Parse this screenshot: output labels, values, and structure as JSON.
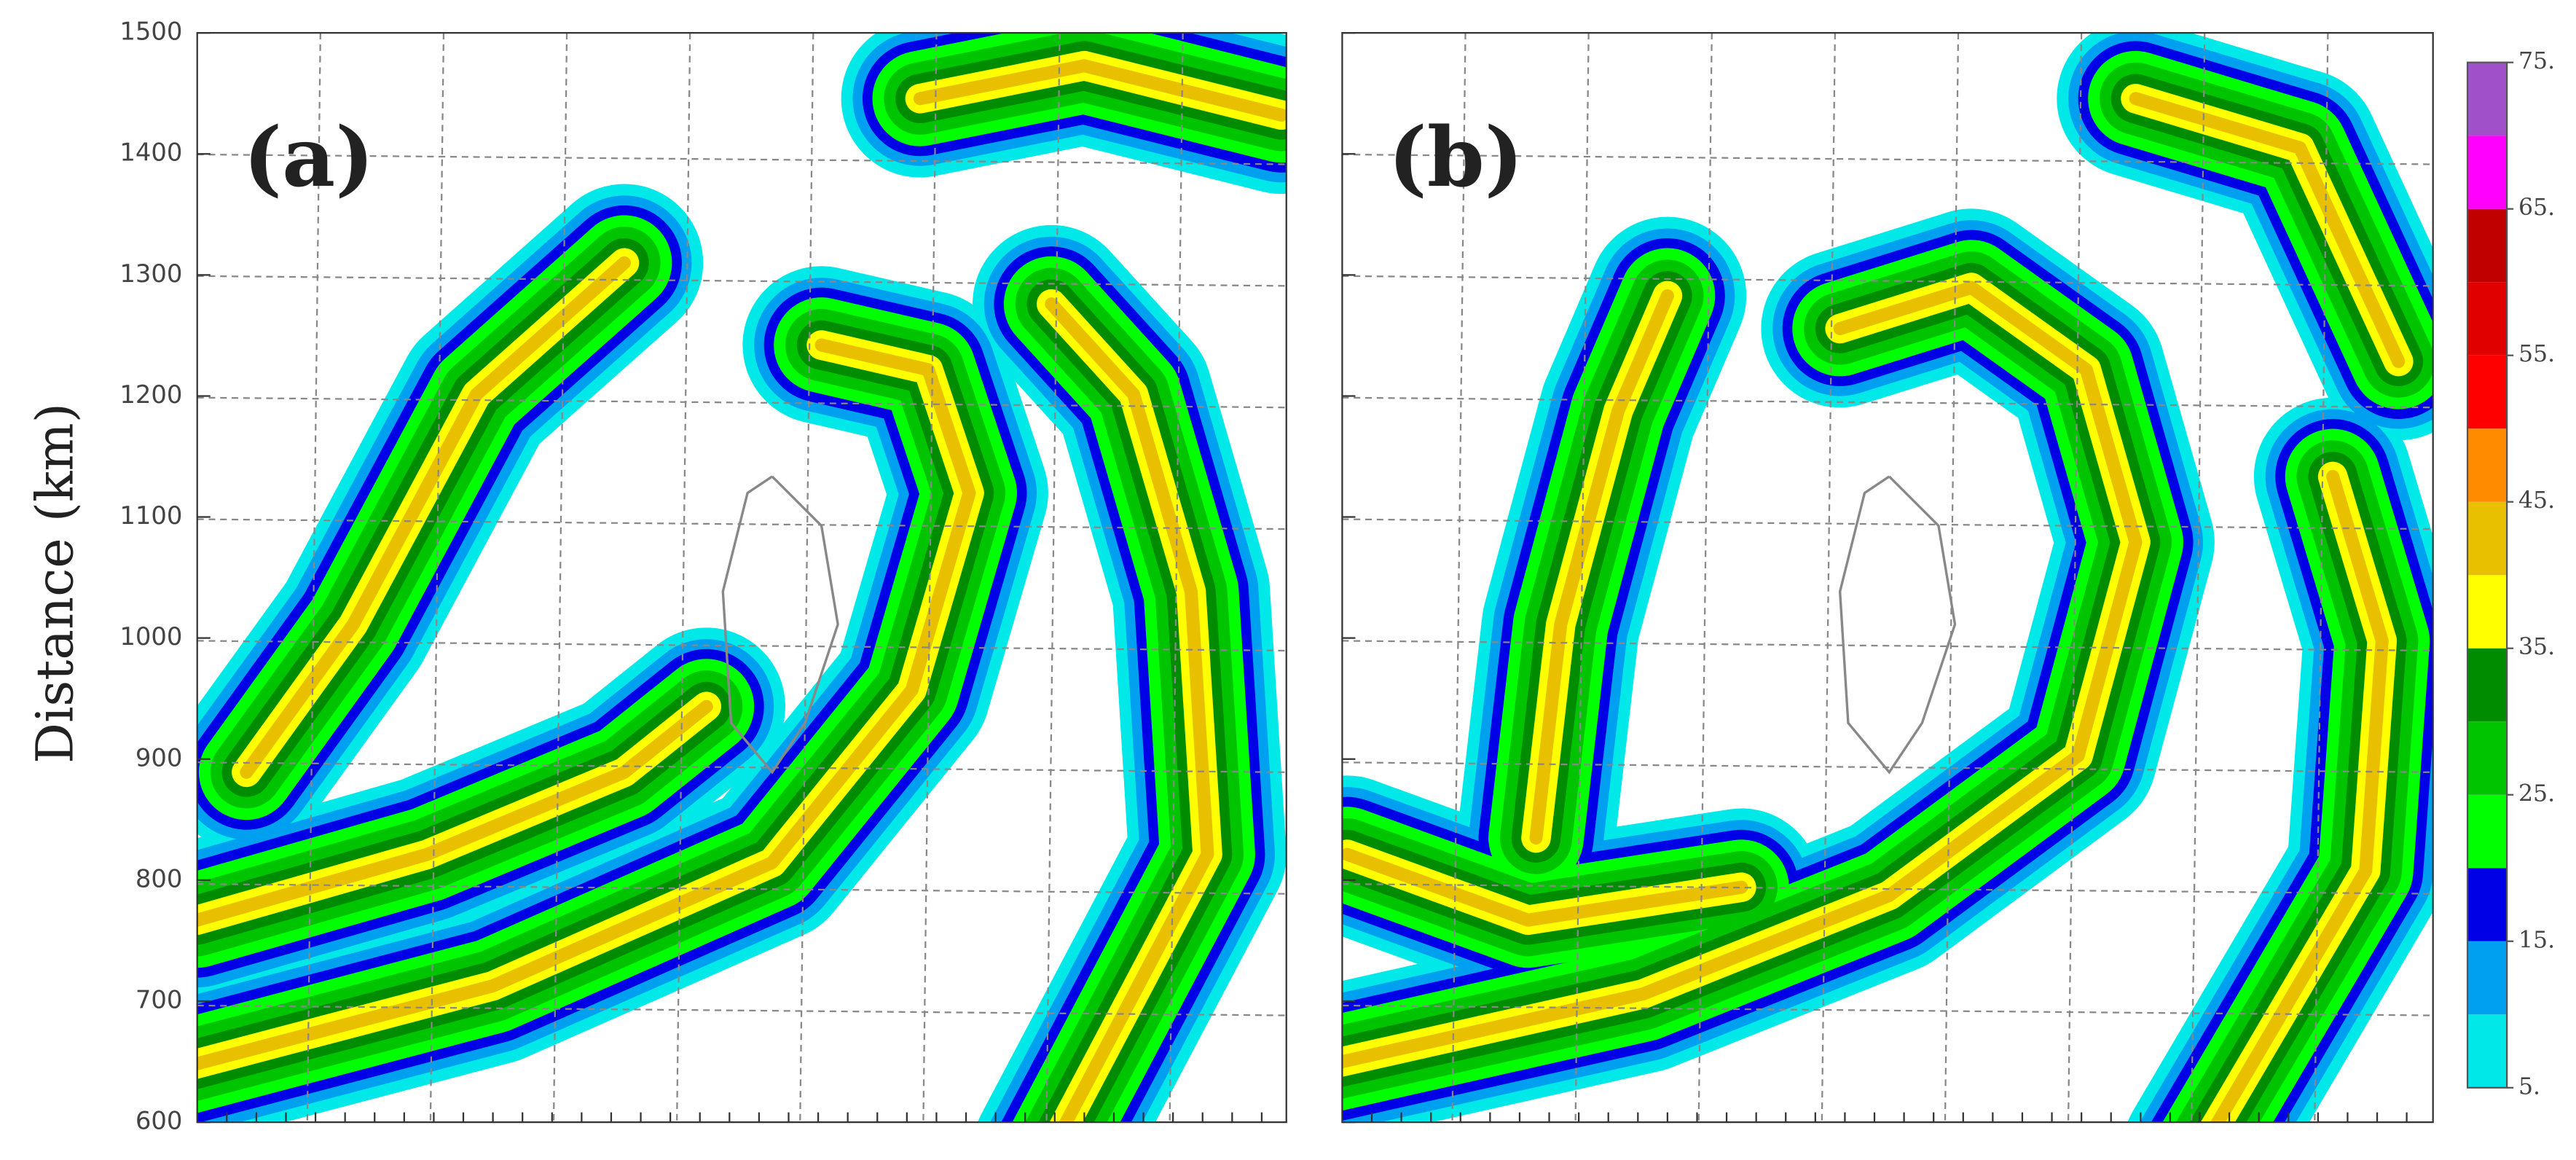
{
  "y_axis": {
    "label": "Distance (km)",
    "ylim": [
      600,
      1500
    ],
    "ticks": [
      600,
      700,
      800,
      900,
      1000,
      1100,
      1200,
      1300,
      1400,
      1500
    ]
  },
  "panels": [
    {
      "label": "(a)"
    },
    {
      "label": "(b)"
    }
  ],
  "colorbar": {
    "range": [
      5,
      75
    ],
    "colors": [
      "#00e8e8",
      "#00a0f0",
      "#0000e6",
      "#00ff00",
      "#00c400",
      "#008c00",
      "#ffff00",
      "#e8c000",
      "#ff8c00",
      "#ff0000",
      "#e00000",
      "#c00000",
      "#ff00ff",
      "#a050c8"
    ],
    "ticks": [
      {
        "value": 5,
        "label": "5."
      },
      {
        "value": 15,
        "label": "15."
      },
      {
        "value": 25,
        "label": "25."
      },
      {
        "value": 35,
        "label": "35."
      },
      {
        "value": 45,
        "label": "45."
      },
      {
        "value": 55,
        "label": "55."
      },
      {
        "value": 65,
        "label": "65."
      },
      {
        "value": 75,
        "label": "75."
      }
    ]
  }
}
